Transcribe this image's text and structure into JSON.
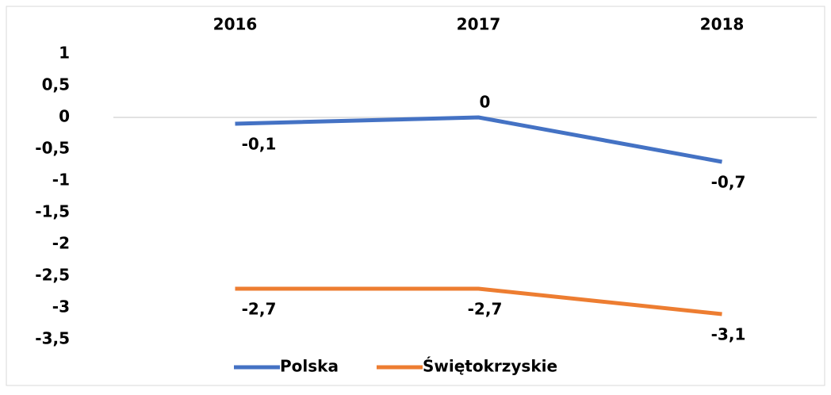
{
  "chart_data": {
    "type": "line",
    "categories": [
      "2016",
      "2017",
      "2018"
    ],
    "series": [
      {
        "name": "Polska",
        "color": "#4472c4",
        "values": [
          -0.1,
          0,
          -0.7
        ],
        "value_labels": [
          "-0,1",
          "0",
          "-0,7"
        ]
      },
      {
        "name": "Świętokrzyskie",
        "color": "#ed7d31",
        "values": [
          -2.7,
          -2.7,
          -3.1
        ],
        "value_labels": [
          "-2,7",
          "-2,7",
          "-3,1"
        ]
      }
    ],
    "ylim": [
      -3.5,
      1
    ],
    "yticks": [
      1,
      {
        "value": 0.5,
        "label": "0,5"
      },
      0,
      {
        "value": -0.5,
        "label": "-0,5"
      },
      -1,
      {
        "value": -1.5,
        "label": "-1,5"
      },
      -2,
      {
        "value": -2.5,
        "label": "-2,5"
      },
      -3,
      {
        "value": -3.5,
        "label": "-3,5"
      }
    ],
    "legend": "bottom"
  }
}
